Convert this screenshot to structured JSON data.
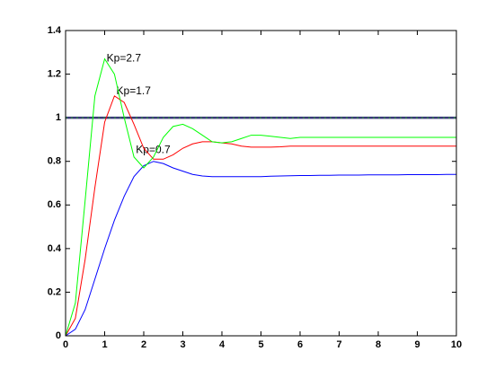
{
  "chart_data": {
    "type": "line",
    "x": [
      0,
      0.25,
      0.5,
      0.75,
      1,
      1.25,
      1.5,
      1.75,
      2,
      2.25,
      2.5,
      2.75,
      3,
      3.25,
      3.5,
      3.75,
      4,
      4.25,
      4.5,
      4.75,
      5,
      5.25,
      5.5,
      5.75,
      6,
      6.25,
      6.5,
      6.75,
      7,
      7.25,
      7.5,
      7.75,
      8,
      8.25,
      8.5,
      8.75,
      9,
      9.25,
      9.5,
      9.75,
      10
    ],
    "series": [
      {
        "name": "Kp=0.7",
        "color": "#0000ff",
        "values": [
          0,
          0.03,
          0.12,
          0.26,
          0.4,
          0.53,
          0.64,
          0.73,
          0.78,
          0.8,
          0.79,
          0.77,
          0.755,
          0.74,
          0.733,
          0.73,
          0.73,
          0.73,
          0.73,
          0.73,
          0.73,
          0.732,
          0.733,
          0.734,
          0.735,
          0.735,
          0.736,
          0.736,
          0.737,
          0.737,
          0.737,
          0.738,
          0.738,
          0.738,
          0.738,
          0.739,
          0.739,
          0.739,
          0.739,
          0.74,
          0.74
        ]
      },
      {
        "name": "Kp=1.7",
        "color": "#ff0000",
        "values": [
          0,
          0.08,
          0.35,
          0.68,
          0.98,
          1.1,
          1.07,
          0.97,
          0.86,
          0.81,
          0.81,
          0.83,
          0.86,
          0.88,
          0.89,
          0.89,
          0.885,
          0.88,
          0.87,
          0.865,
          0.865,
          0.865,
          0.867,
          0.87,
          0.87,
          0.87,
          0.87,
          0.87,
          0.87,
          0.87,
          0.87,
          0.87,
          0.87,
          0.87,
          0.87,
          0.87,
          0.87,
          0.87,
          0.87,
          0.87,
          0.87
        ]
      },
      {
        "name": "Kp=2.7",
        "color": "#00ff00",
        "values": [
          0,
          0.15,
          0.62,
          1.1,
          1.27,
          1.2,
          1.0,
          0.82,
          0.77,
          0.82,
          0.91,
          0.96,
          0.97,
          0.95,
          0.92,
          0.89,
          0.885,
          0.89,
          0.905,
          0.92,
          0.92,
          0.915,
          0.91,
          0.905,
          0.91,
          0.91,
          0.91,
          0.91,
          0.91,
          0.91,
          0.91,
          0.91,
          0.91,
          0.91,
          0.91,
          0.91,
          0.91,
          0.91,
          0.91,
          0.91,
          0.91
        ]
      }
    ],
    "reference": {
      "x": [
        0,
        10
      ],
      "values": [
        1,
        1
      ],
      "color": "#3a3a7a"
    },
    "xlim": [
      0,
      10
    ],
    "xticks": [
      0,
      1,
      2,
      3,
      4,
      5,
      6,
      7,
      8,
      9,
      10
    ],
    "ylim": [
      0,
      1.4
    ],
    "yticks": [
      0,
      0.2,
      0.4,
      0.6,
      0.8,
      1,
      1.2,
      1.4
    ]
  }
}
